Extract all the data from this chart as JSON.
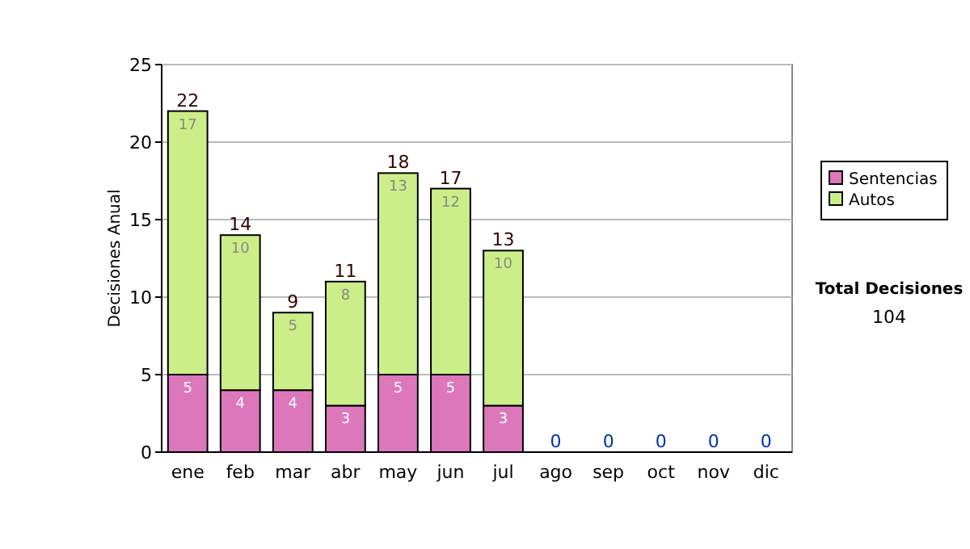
{
  "chart_data": {
    "type": "bar",
    "stacked": true,
    "ylabel": "Decisiones Anual",
    "categories": [
      "ene",
      "feb",
      "mar",
      "abr",
      "may",
      "jun",
      "jul",
      "ago",
      "sep",
      "oct",
      "nov",
      "dic"
    ],
    "series": [
      {
        "name": "Sentencias",
        "color": "#dd77bb",
        "values": [
          5,
          4,
          4,
          3,
          5,
          5,
          3,
          0,
          0,
          0,
          0,
          0
        ],
        "value_labels": [
          "5",
          "4",
          "4",
          "3",
          "5",
          "5",
          "3",
          null,
          null,
          null,
          null,
          null
        ]
      },
      {
        "name": "Autos",
        "color": "#ccee88",
        "values": [
          17,
          10,
          5,
          8,
          13,
          12,
          10,
          0,
          0,
          0,
          0,
          0
        ],
        "value_labels": [
          "17",
          "10",
          "5",
          "8",
          "13",
          "12",
          "10",
          null,
          null,
          null,
          null,
          null
        ]
      }
    ],
    "totals": [
      "22",
      "14",
      "9",
      "11",
      "18",
      "17",
      "13",
      "0",
      "0",
      "0",
      "0",
      "0"
    ],
    "ylim": [
      0,
      25
    ],
    "yticks": [
      0,
      5,
      10,
      15,
      20,
      25
    ],
    "grid": "y",
    "legend": "right",
    "annotations": [
      "Total Decisiones",
      "104"
    ]
  }
}
